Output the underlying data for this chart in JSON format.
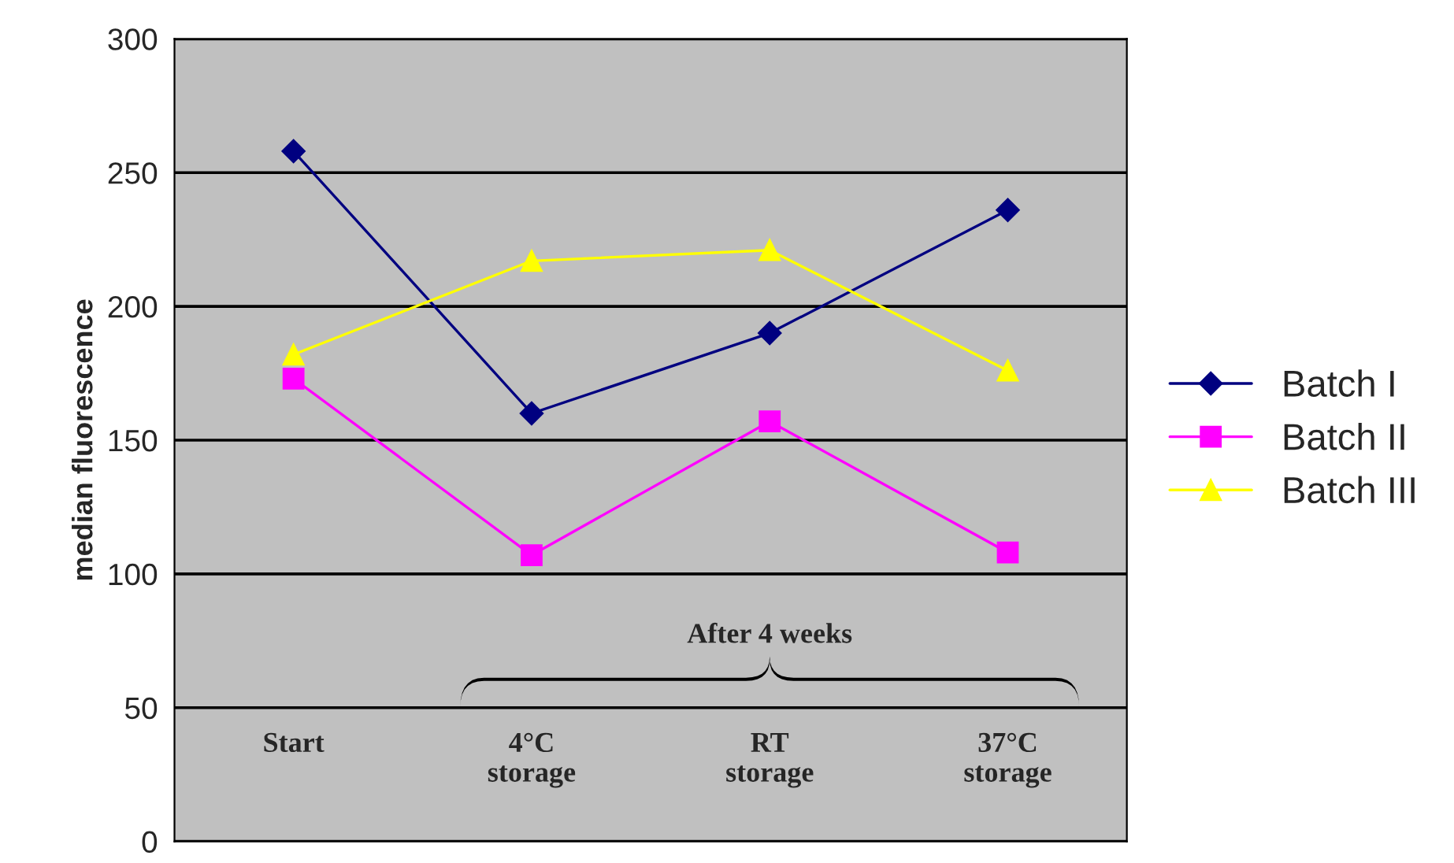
{
  "chart_data": {
    "type": "line",
    "ylabel": "median fluorescence",
    "categories": [
      "Start",
      "4°C\nstorage",
      "RT\nstorage",
      "37°C\nstorage"
    ],
    "series": [
      {
        "name": "Batch I",
        "color": "#000080",
        "marker": "diamond",
        "values": [
          258,
          160,
          190,
          236
        ]
      },
      {
        "name": "Batch II",
        "color": "#ff00ff",
        "marker": "square",
        "values": [
          173,
          107,
          157,
          108
        ]
      },
      {
        "name": "Batch III",
        "color": "#ffff00",
        "marker": "triangle",
        "values": [
          182,
          217,
          221,
          176
        ]
      }
    ],
    "ylim": [
      0,
      300
    ],
    "yticks": [
      0,
      50,
      100,
      150,
      200,
      250,
      300
    ],
    "grid": "y",
    "legend": "right",
    "annotations": [
      "After 4 weeks"
    ]
  }
}
